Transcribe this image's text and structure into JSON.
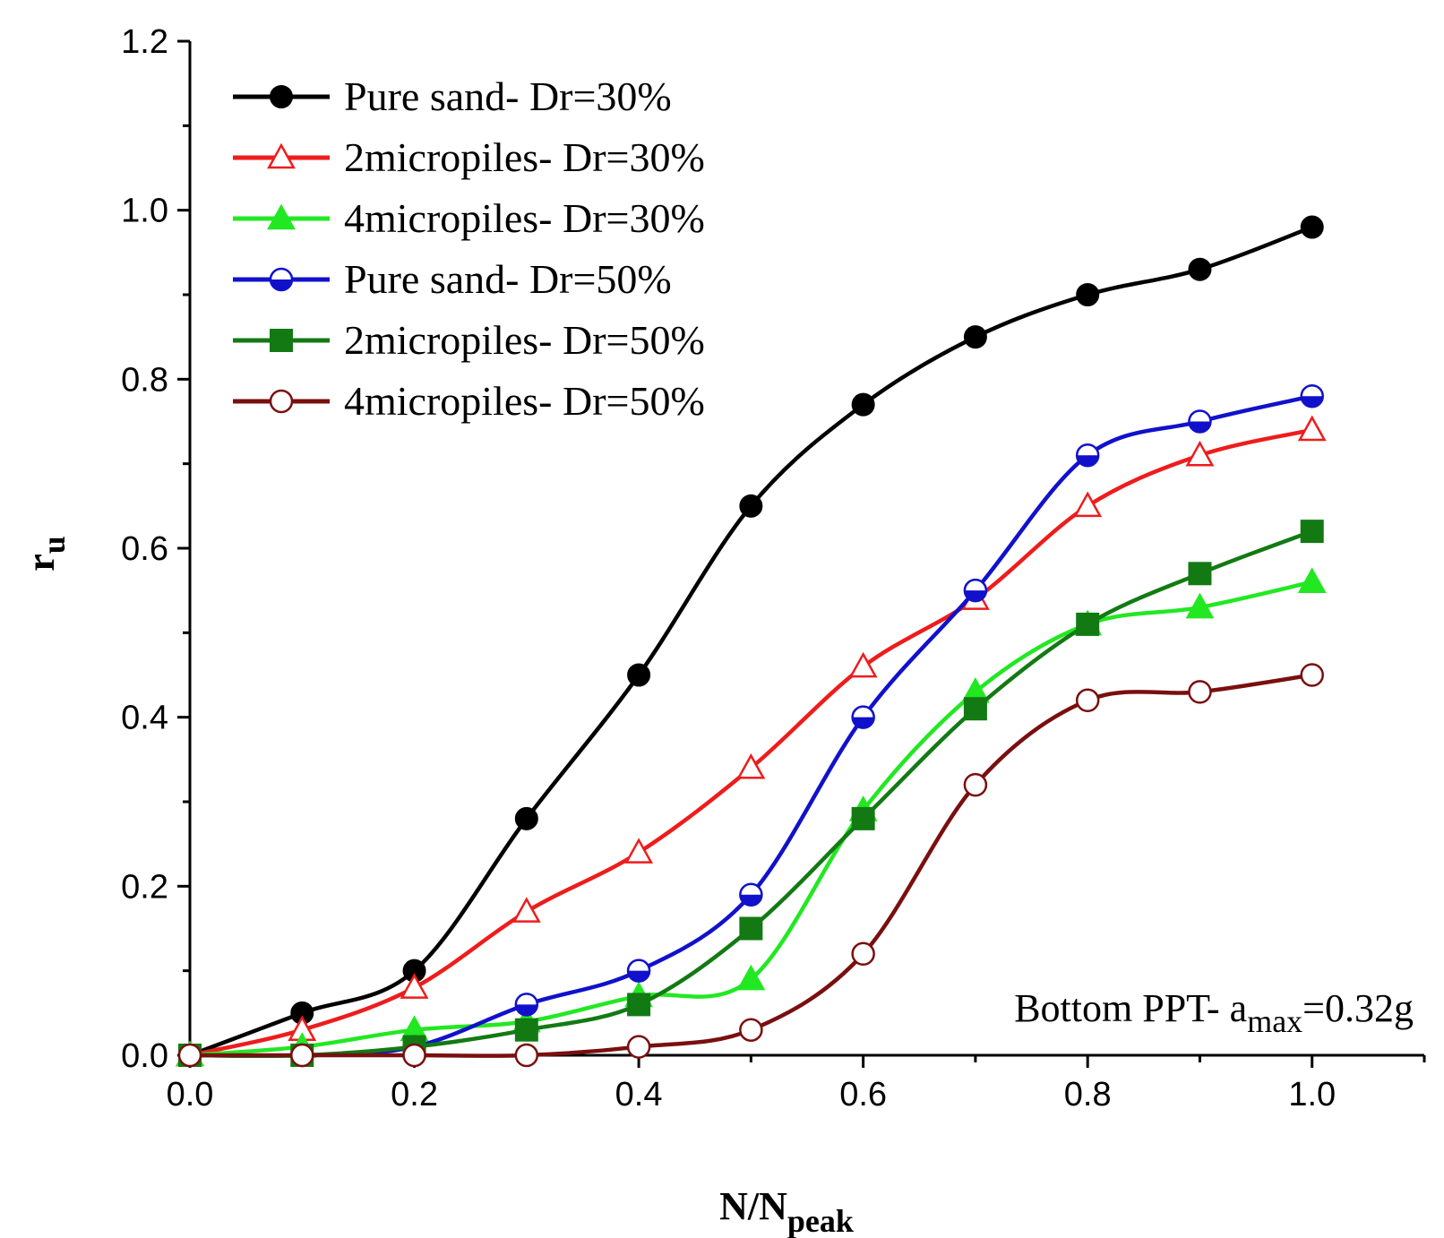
{
  "chart_data": {
    "type": "line",
    "title": "",
    "xlabel": {
      "main": "N/N",
      "sub": "peak"
    },
    "ylabel": {
      "main": "r",
      "sub": "u"
    },
    "xlim": [
      0.0,
      1.1
    ],
    "ylim": [
      0.0,
      1.2
    ],
    "x_ticks": [
      "0.0",
      "0.2",
      "0.4",
      "0.6",
      "0.8",
      "1.0"
    ],
    "y_ticks": [
      "0.0",
      "0.2",
      "0.4",
      "0.6",
      "0.8",
      "1.0",
      "1.2"
    ],
    "grid": false,
    "legend_position": "top-left",
    "x": [
      0.0,
      0.1,
      0.2,
      0.3,
      0.4,
      0.5,
      0.6,
      0.7,
      0.8,
      0.9,
      1.0
    ],
    "series": [
      {
        "name": "Pure sand- Dr=30%",
        "color": "#000000",
        "marker": "circle-filled",
        "values": [
          0.0,
          0.05,
          0.1,
          0.28,
          0.45,
          0.65,
          0.77,
          0.85,
          0.9,
          0.93,
          0.98
        ]
      },
      {
        "name": "2micropiles- Dr=30%",
        "color": "#ee1c1c",
        "marker": "triangle-open",
        "values": [
          0.0,
          0.03,
          0.08,
          0.17,
          0.24,
          0.34,
          0.46,
          0.54,
          0.65,
          0.71,
          0.74
        ]
      },
      {
        "name": "4micropiles- Dr=30%",
        "color": "#22e822",
        "marker": "triangle-filled",
        "values": [
          0.0,
          0.01,
          0.03,
          0.04,
          0.07,
          0.09,
          0.29,
          0.43,
          0.51,
          0.53,
          0.56
        ]
      },
      {
        "name": "Pure sand- Dr=50%",
        "color": "#1111cc",
        "marker": "circle-half",
        "values": [
          0.0,
          0.0,
          0.01,
          0.06,
          0.1,
          0.19,
          0.4,
          0.55,
          0.71,
          0.75,
          0.78
        ]
      },
      {
        "name": "2micropiles- Dr=50%",
        "color": "#137a13",
        "marker": "square-filled",
        "values": [
          0.0,
          0.0,
          0.01,
          0.03,
          0.06,
          0.15,
          0.28,
          0.41,
          0.51,
          0.57,
          0.62
        ]
      },
      {
        "name": "4micropiles- Dr=50%",
        "color": "#7a0f0f",
        "marker": "circle-open",
        "values": [
          0.0,
          0.0,
          0.0,
          0.0,
          0.01,
          0.03,
          0.12,
          0.32,
          0.42,
          0.43,
          0.45
        ]
      }
    ],
    "annotation": {
      "main": "Bottom PPT- a",
      "sub": "max",
      "tail": "=0.32g"
    }
  }
}
